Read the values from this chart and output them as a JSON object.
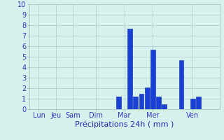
{
  "xlabel": "Précipitations 24h ( mm )",
  "ylim": [
    0,
    10
  ],
  "yticks": [
    0,
    1,
    2,
    3,
    4,
    5,
    6,
    7,
    8,
    9,
    10
  ],
  "background_color": "#d5f2ee",
  "bar_color": "#1a3fd4",
  "bar_edge_color": "#0a2ab0",
  "grid_color": "#aec8c4",
  "day_labels": [
    "Lun",
    "Jeu",
    "Sam",
    "Dim",
    "Mar",
    "Mer",
    "Ven"
  ],
  "day_tick_positions": [
    1,
    4,
    7,
    11,
    16,
    21,
    28
  ],
  "num_bars": 33,
  "bar_values": [
    0,
    0,
    0,
    0,
    0,
    0,
    0,
    0,
    0,
    0,
    0,
    0,
    0,
    0,
    0,
    1.2,
    0,
    7.7,
    1.2,
    1.5,
    2.1,
    5.7,
    1.2,
    0.5,
    0,
    0,
    4.65,
    0,
    1.0,
    1.2,
    0,
    0,
    0
  ],
  "tick_label_color": "#3333bb",
  "xlabel_color": "#2222aa",
  "xlabel_fontsize": 8,
  "tick_fontsize": 7
}
